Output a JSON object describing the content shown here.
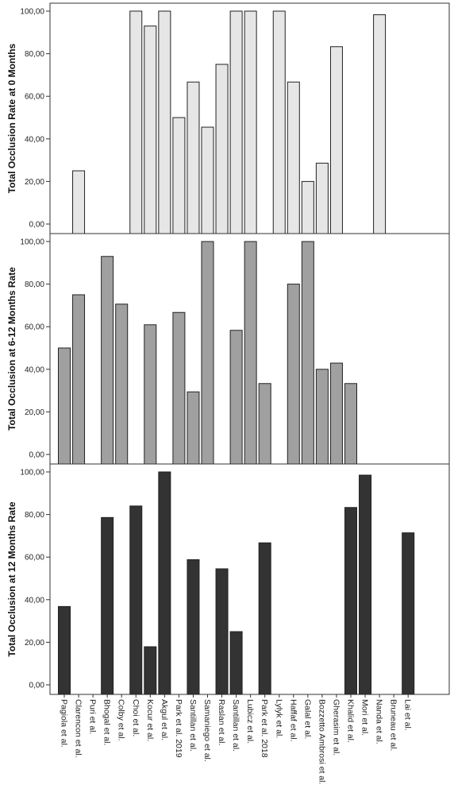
{
  "chart_data": {
    "type": "bar",
    "categories": [
      "Pagiola et al.",
      "Clarencon et al.",
      "Puri et al.",
      "Bhogal et al.",
      "Colby et al.",
      "Choi et al.",
      "Kocur et al.",
      "Akgul et al.",
      "Park et al. 2019",
      "Santillan et al.",
      "Samaniego et al.",
      "Raslan et al.",
      "Santillan et al.",
      "Lubicz et al.",
      "Park et al. 2018",
      "Lylyk et al.",
      "Haffaf et al.",
      "Galal et al.",
      "Bozzetto Ambrosi et al.",
      "Gherasim et al.",
      "Khalid et al.",
      "Mori et al.",
      "Nanda et al.",
      "Bruneau et al.",
      "Lai et al."
    ],
    "panels": [
      {
        "ylabel": "Total Occlusion Rate at 0 Months",
        "color": "#e6e6e6",
        "values": [
          null,
          25,
          null,
          null,
          null,
          100,
          93,
          100,
          50,
          66.7,
          45.5,
          75,
          100,
          100,
          null,
          100,
          66.7,
          20,
          28.6,
          83.3,
          null,
          null,
          98.3,
          null,
          null
        ]
      },
      {
        "ylabel": "Total Occlusion at 6-12 Months Rate",
        "color": "#a0a0a0",
        "values": [
          50,
          75,
          null,
          93,
          70.6,
          null,
          60.9,
          null,
          66.7,
          29.4,
          100,
          null,
          58.3,
          100,
          33.3,
          null,
          80,
          100,
          40,
          42.9,
          33.3,
          null,
          null,
          null,
          null
        ]
      },
      {
        "ylabel": "Total Occlusion at 12 Months Rate",
        "color": "#333333",
        "values": [
          36.8,
          null,
          null,
          78.6,
          null,
          84,
          17.9,
          100,
          null,
          58.8,
          null,
          54.5,
          25,
          null,
          66.7,
          null,
          null,
          null,
          null,
          null,
          83.3,
          98.5,
          null,
          null,
          71.4
        ]
      }
    ],
    "yticks": [
      "0,00",
      "20,00",
      "40,00",
      "60,00",
      "80,00",
      "100,00"
    ],
    "ylim": [
      0,
      100
    ],
    "grid": false,
    "legend": "none"
  }
}
